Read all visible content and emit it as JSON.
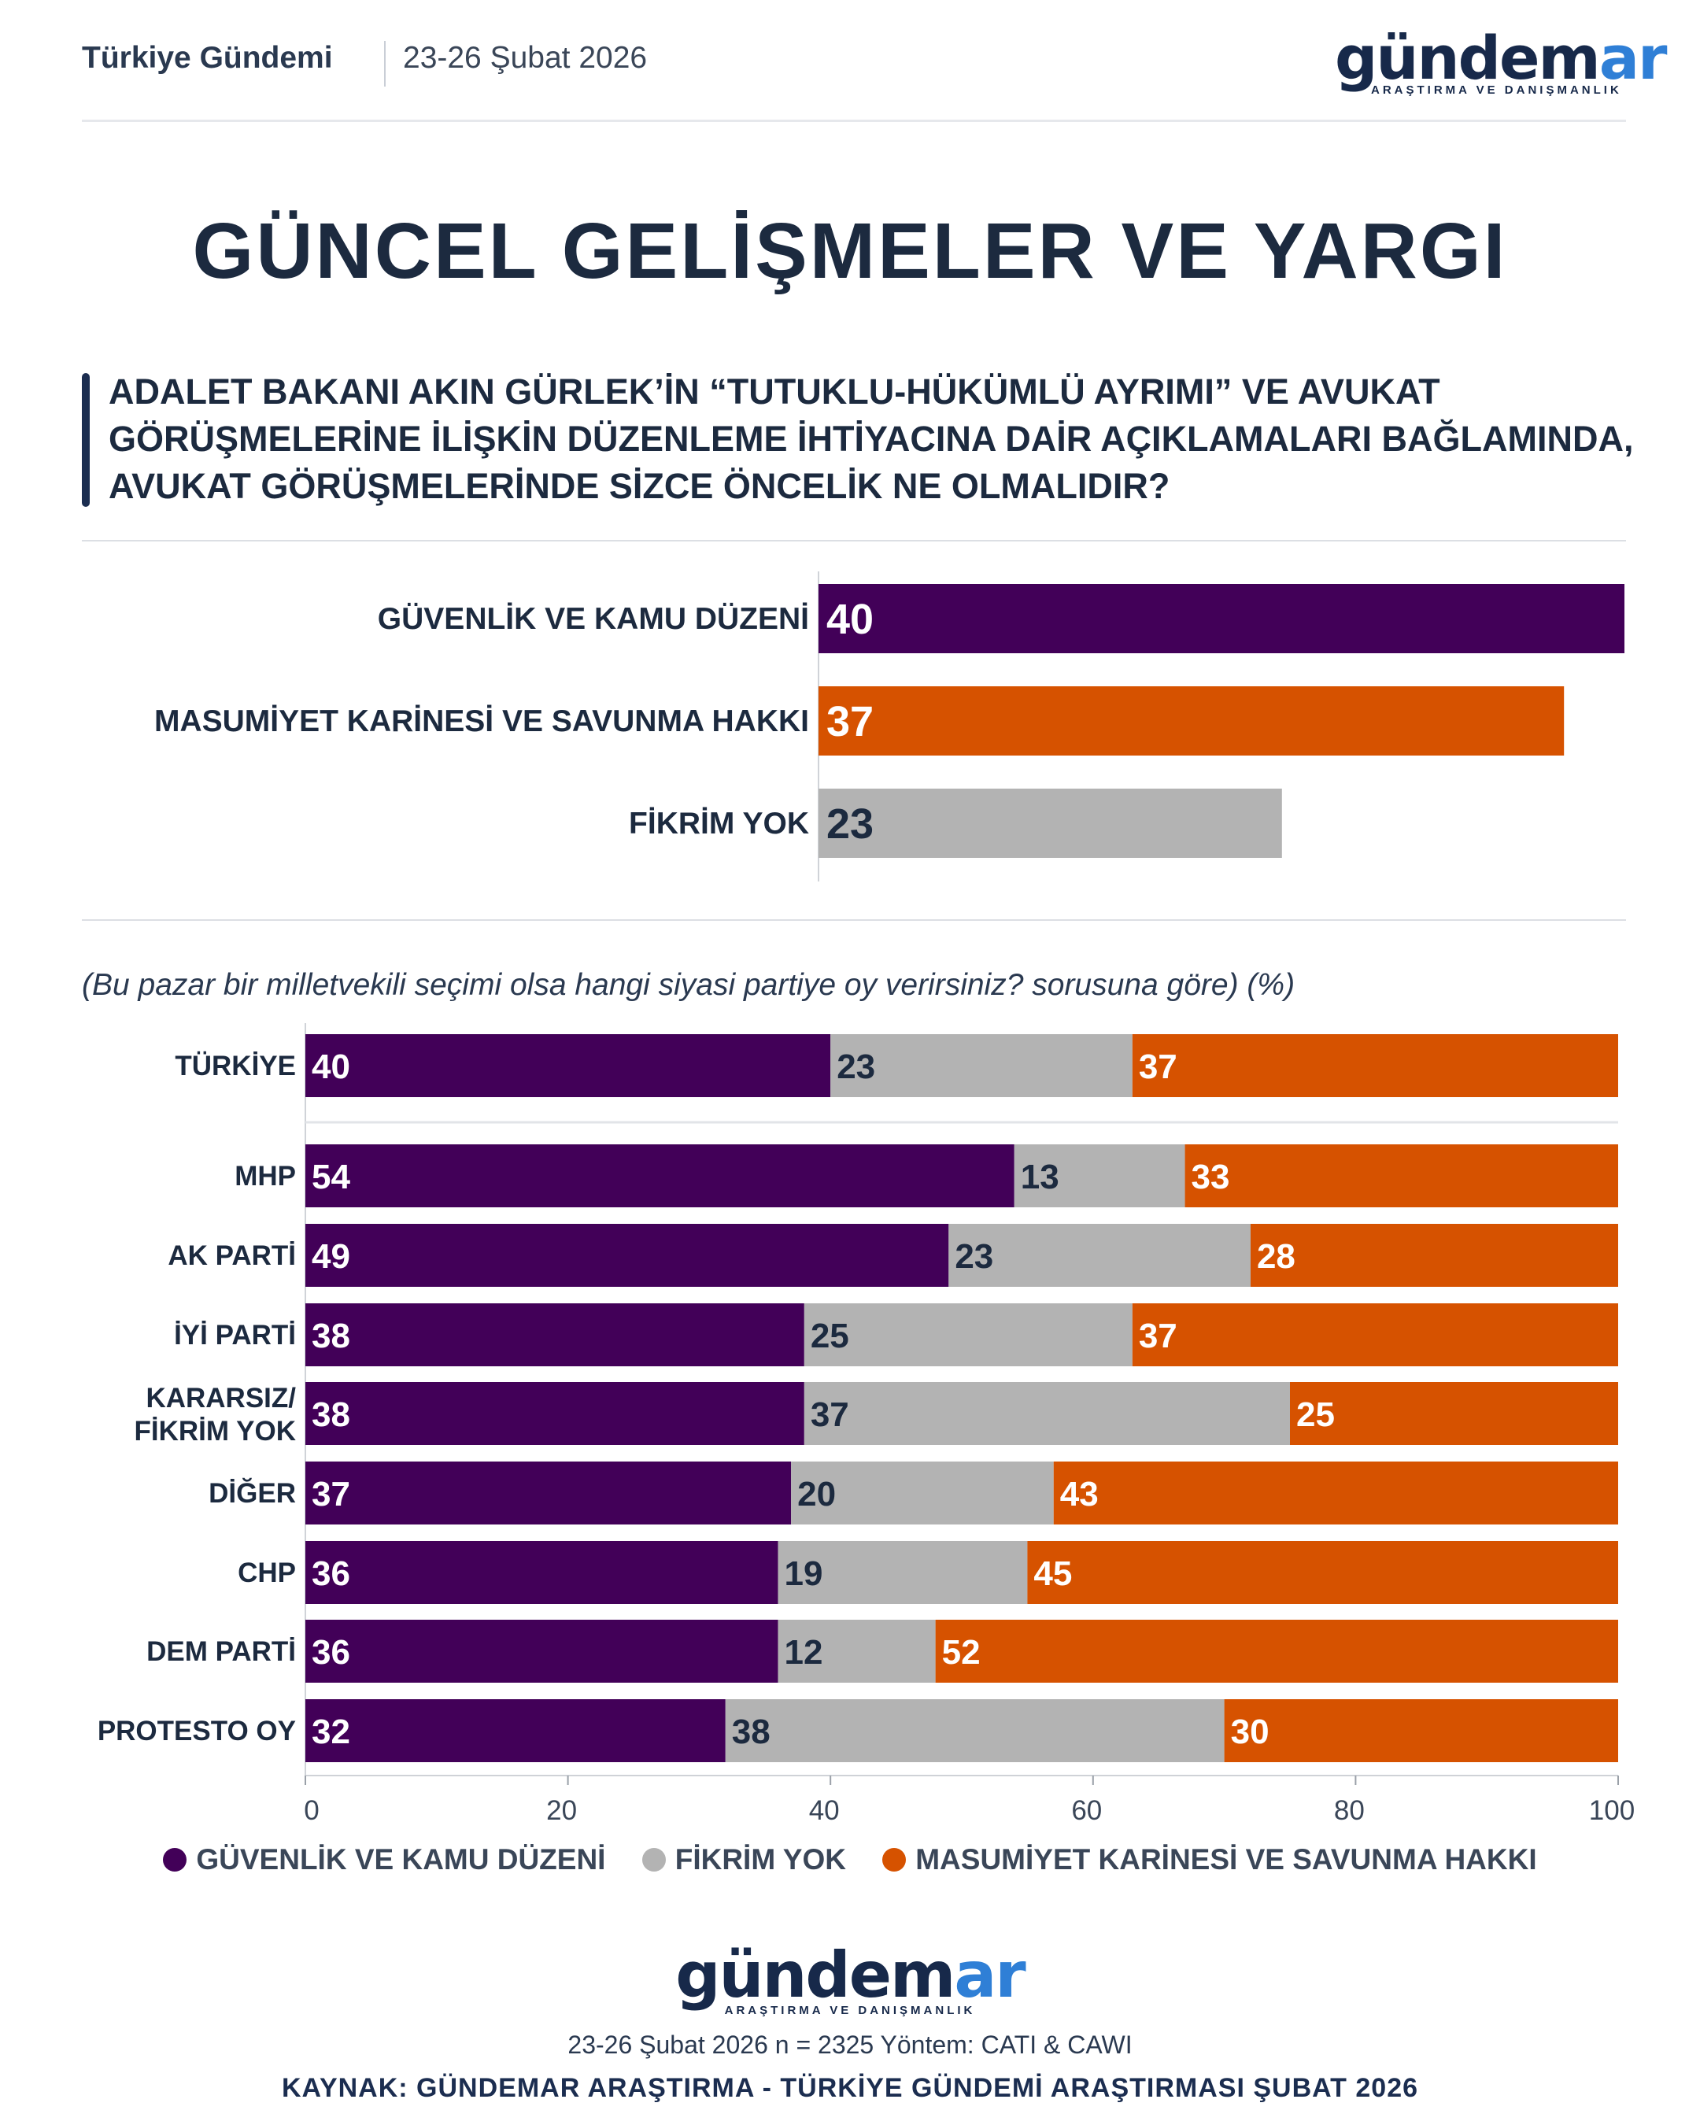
{
  "header": {
    "left": "Türkiye Gündemi",
    "date": "23-26 Şubat 2026"
  },
  "logo": {
    "word_a": "gündem",
    "word_b": "ar",
    "sub": "ARAŞTIRMA VE DANIŞMANLIK"
  },
  "title": "GÜNCEL GELİŞMELER VE YARGI",
  "question": "ADALET BAKANI AKIN GÜRLEK’İN “TUTUKLU-HÜKÜMLÜ AYRIMI” VE AVUKAT GÖRÜŞMELERİNE İLİŞKİN DÜZENLEME İHTİYACINA DAİR AÇIKLAMALARI BAĞLAMINDA, AVUKAT GÖRÜŞMELERİNDE SİZCE ÖNCELİK NE OLMALIDIR?",
  "subtitle": "(Bu pazar bir milletvekili seçimi olsa hangi siyasi partiye oy verirsiniz? sorusuna göre) (%)",
  "colors": {
    "purple": "#420058",
    "orange": "#d65200",
    "gray": "#b3b3b3",
    "white": "#ffffff",
    "dark": "#1c2a3f"
  },
  "chart_data": [
    {
      "type": "bar",
      "orientation": "horizontal",
      "categories": [
        "GÜVENLİK VE KAMU DÜZENİ",
        "MASUMİYET KARİNESİ VE SAVUNMA HAKKI",
        "FİKRİM YOK"
      ],
      "values": [
        40,
        37,
        23
      ],
      "colors": [
        "#420058",
        "#d65200",
        "#b3b3b3"
      ],
      "xlim": [
        0,
        40
      ]
    },
    {
      "type": "bar",
      "orientation": "horizontal",
      "stacked": true,
      "categories": [
        "TÜRKİYE",
        "MHP",
        "AK PARTİ",
        "İYİ PARTİ",
        "KARARSIZ/ FİKRİM YOK",
        "DİĞER",
        "CHP",
        "DEM PARTİ",
        "PROTESTO OY"
      ],
      "series": [
        {
          "name": "GÜVENLİK VE KAMU DÜZENİ",
          "color": "#420058",
          "values": [
            40,
            54,
            49,
            38,
            38,
            37,
            36,
            36,
            32
          ]
        },
        {
          "name": "FİKRİM YOK",
          "color": "#b3b3b3",
          "values": [
            23,
            13,
            23,
            25,
            37,
            20,
            19,
            12,
            38
          ]
        },
        {
          "name": "MASUMİYET KARİNESİ VE SAVUNMA HAKKI",
          "color": "#d65200",
          "values": [
            37,
            33,
            28,
            37,
            25,
            43,
            45,
            52,
            30
          ]
        }
      ],
      "xticks": [
        0,
        20,
        40,
        60,
        80,
        100
      ],
      "xlim": [
        0,
        100
      ],
      "legend": "bottom"
    }
  ],
  "legend": [
    {
      "label": "GÜVENLİK VE KAMU DÜZENİ",
      "color": "#420058"
    },
    {
      "label": "FİKRİM YOK",
      "color": "#b3b3b3"
    },
    {
      "label": "MASUMİYET KARİNESİ VE SAVUNMA HAKKI",
      "color": "#d65200"
    }
  ],
  "footer": {
    "meta": "23-26 Şubat 2026 n = 2325 Yöntem: CATI & CAWI",
    "source": "KAYNAK: GÜNDEMAR ARAŞTIRMA - TÜRKİYE GÜNDEMİ ARAŞTIRMASI ŞUBAT 2026"
  }
}
